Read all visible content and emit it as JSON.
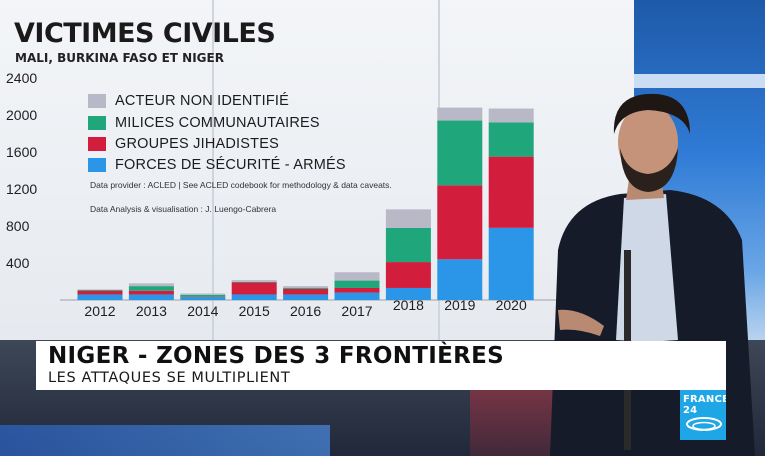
{
  "chart": {
    "title": "VICTIMES CIVILES",
    "subtitle": "MALI, BURKINA FASO ET NIGER",
    "legend": [
      {
        "label": "ACTEUR NON IDENTIFIÉ",
        "color": "#b8b8c6"
      },
      {
        "label": "MILICES COMMUNAUTAIRES",
        "color": "#1fa67a"
      },
      {
        "label": "GROUPES JIHADISTES",
        "color": "#d31d3c"
      },
      {
        "label": "FORCES DE SÉCURITÉ - ARMÉS",
        "color": "#2b96e8"
      }
    ],
    "note_provider": "Data provider : ACLED | See ACLED codebook for methodology & data caveats.",
    "note_analysis": "Data Analysis & visualisation : J. Luengo-Cabrera"
  },
  "chart_data": {
    "type": "bar",
    "stacked": true,
    "title": "VICTIMES CIVILES",
    "subtitle": "MALI, BURKINA FASO ET NIGER",
    "categories": [
      "2012",
      "2013",
      "2014",
      "2015",
      "2016",
      "2017",
      "2018",
      "2019",
      "2020"
    ],
    "y_ticks": [
      400,
      800,
      1200,
      1600,
      2000,
      2400
    ],
    "ylim": [
      0,
      2400
    ],
    "grid": false,
    "legend_position": "top-left",
    "series": [
      {
        "name": "FORCES DE SÉCURITÉ - ARMÉS",
        "values": [
          60,
          60,
          30,
          60,
          60,
          80,
          130,
          440,
          780
        ]
      },
      {
        "name": "GROUPES JIHADISTES",
        "values": [
          40,
          40,
          5,
          130,
          60,
          50,
          280,
          800,
          770
        ]
      },
      {
        "name": "MILICES COMMUNAUTAIRES",
        "values": [
          10,
          50,
          20,
          5,
          10,
          80,
          370,
          700,
          370
        ]
      },
      {
        "name": "ACTEUR NON IDENTIFIÉ",
        "values": [
          5,
          30,
          15,
          20,
          20,
          90,
          200,
          140,
          150
        ]
      }
    ]
  },
  "banner": {
    "headline": "NIGER - ZONES DES 3 FRONTIÈRES",
    "subheadline": "LES ATTAQUES SE MULTIPLIENT"
  },
  "logo": {
    "text": "FRANCE 24",
    "color": "#1fa6e6"
  }
}
